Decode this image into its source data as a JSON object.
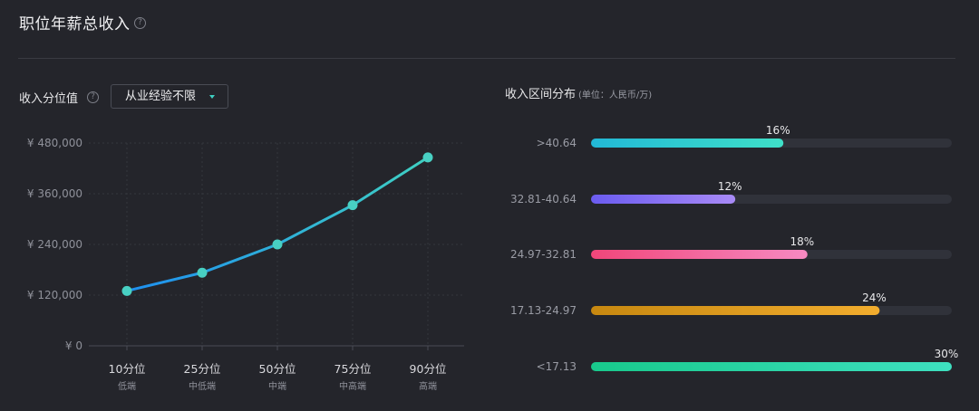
{
  "header": {
    "title": "职位年薪总收入",
    "help_icon": "?"
  },
  "left": {
    "label": "收入分位值",
    "help_icon": "?",
    "dropdown": {
      "selected": "从业经验不限",
      "icon": "caret-down-icon"
    }
  },
  "right": {
    "label": "收入区间分布",
    "unit": "(单位：人民币/万)"
  },
  "chart_data": [
    {
      "type": "line",
      "categories": [
        "10分位",
        "25分位",
        "50分位",
        "75分位",
        "90分位"
      ],
      "subcategories": [
        "低端",
        "中低端",
        "中端",
        "中高端",
        "高端"
      ],
      "values": [
        130000,
        173000,
        240000,
        333000,
        446000
      ],
      "ylim": [
        0,
        480000
      ],
      "yticks": [
        0,
        120000,
        240000,
        360000,
        480000
      ],
      "ytick_labels": [
        "¥ 0",
        "¥ 120,000",
        "¥ 240,000",
        "¥ 360,000",
        "¥ 480,000"
      ],
      "grid": true,
      "colors": {
        "start": "#1e8ff0",
        "end": "#3fd0c2",
        "marker": "#48d0c3"
      }
    },
    {
      "type": "bar",
      "orientation": "horizontal",
      "categories": [
        ">40.64",
        "32.81-40.64",
        "24.97-32.81",
        "17.13-24.97",
        "<17.13"
      ],
      "values": [
        16,
        12,
        18,
        24,
        30
      ],
      "value_labels": [
        "16%",
        "12%",
        "18%",
        "24%",
        "30%"
      ],
      "xlim": [
        0,
        30
      ],
      "colors": [
        [
          "#22b8d6",
          "#3fe0c8"
        ],
        [
          "#6b5cf0",
          "#a88af6"
        ],
        [
          "#f0467a",
          "#f78ac2"
        ],
        [
          "#c78810",
          "#f2ad2e"
        ],
        [
          "#18c98c",
          "#3ee0c0"
        ]
      ],
      "track_color": "#30323a"
    }
  ]
}
